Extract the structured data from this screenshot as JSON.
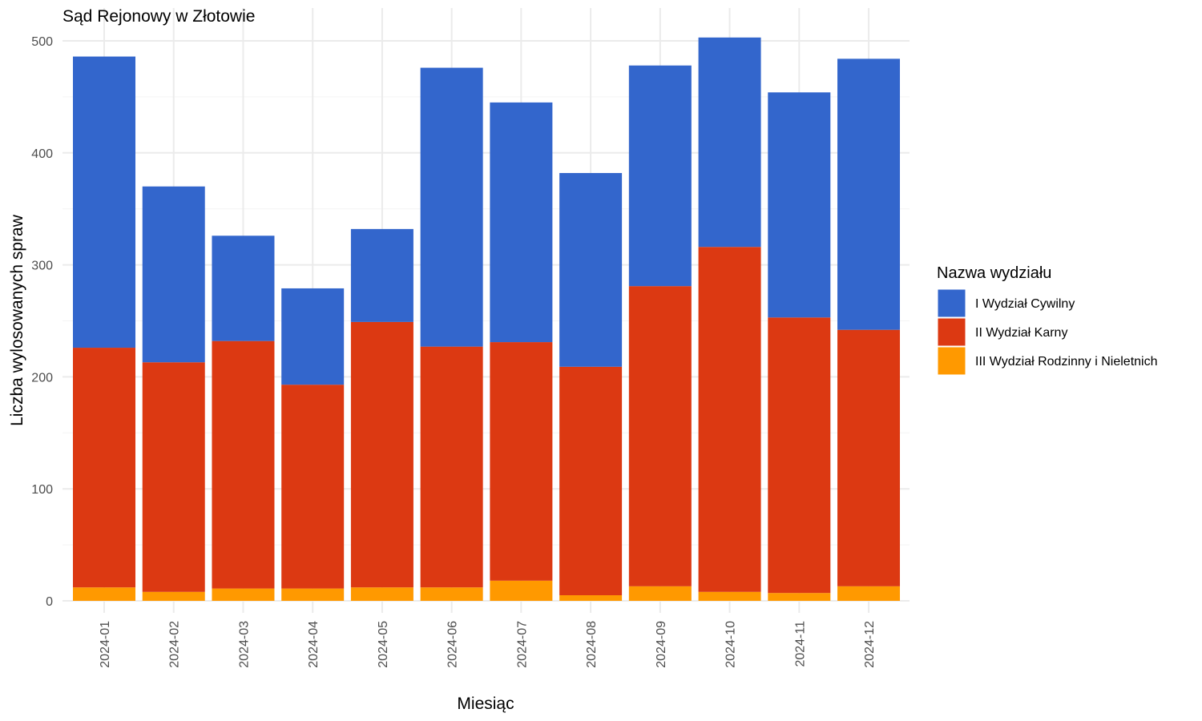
{
  "chart_data": {
    "type": "bar",
    "stacked": true,
    "title": "Sąd Rejonowy w Złotowie",
    "xlabel": "Miesiąc",
    "ylabel": "Liczba wylosowanych spraw",
    "ylim": [
      0,
      510
    ],
    "yticks": [
      0,
      100,
      200,
      300,
      400,
      500
    ],
    "grid": true,
    "legend_title": "Nazwa wydziału",
    "legend_position": "right",
    "categories": [
      "2024-01",
      "2024-02",
      "2024-03",
      "2024-04",
      "2024-05",
      "2024-06",
      "2024-07",
      "2024-08",
      "2024-09",
      "2024-10",
      "2024-11",
      "2024-12"
    ],
    "series": [
      {
        "name": "I Wydział Cywilny",
        "color": "#3366cc",
        "values": [
          260,
          157,
          94,
          86,
          83,
          249,
          214,
          173,
          197,
          187,
          201,
          242
        ]
      },
      {
        "name": "II Wydział Karny",
        "color": "#dc3912",
        "values": [
          214,
          205,
          221,
          182,
          237,
          215,
          213,
          204,
          268,
          308,
          246,
          229
        ]
      },
      {
        "name": "III Wydział Rodzinny i Nieletnich",
        "color": "#ff9900",
        "values": [
          12,
          8,
          11,
          11,
          12,
          12,
          18,
          5,
          13,
          8,
          7,
          13
        ]
      }
    ]
  }
}
